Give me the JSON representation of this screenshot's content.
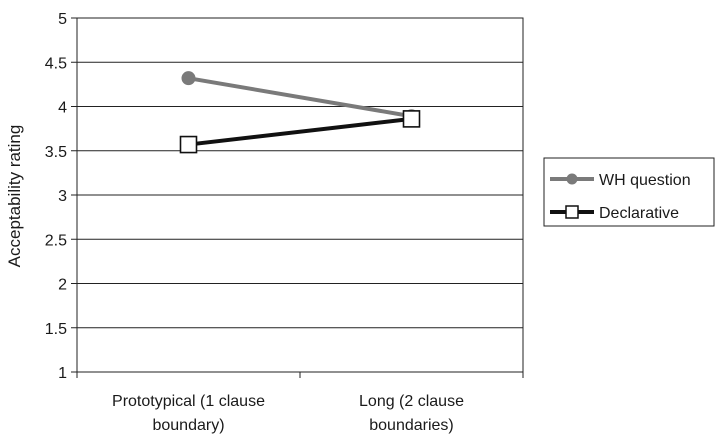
{
  "chart_data": {
    "type": "line",
    "title": "",
    "xlabel": "",
    "ylabel": "Acceptability rating",
    "categories": [
      [
        "Prototypical (1 clause",
        "boundary)"
      ],
      [
        "Long (2 clause",
        "boundaries)"
      ]
    ],
    "ylim": [
      1,
      5
    ],
    "yticks": [
      "1",
      "1.5",
      "2",
      "2.5",
      "3",
      "3.5",
      "4",
      "4.5",
      "5"
    ],
    "grid": true,
    "legend_position": "right",
    "series": [
      {
        "name": "WH question",
        "values": [
          4.32,
          3.89
        ],
        "color": "#7a7a7a",
        "marker": "circle"
      },
      {
        "name": "Declarative",
        "values": [
          3.57,
          3.86
        ],
        "color": "#111111",
        "marker": "square"
      }
    ]
  }
}
